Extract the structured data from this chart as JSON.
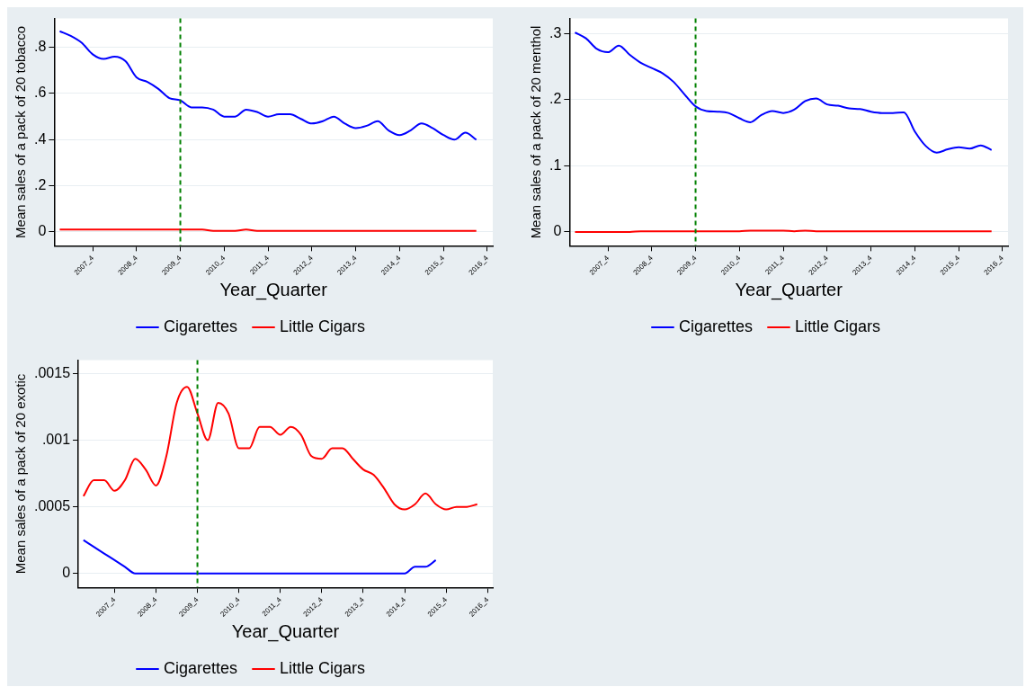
{
  "chart_data": [
    {
      "type": "line",
      "ylabel": "Mean sales of a pack of 20 tobacco",
      "xlabel": "Year_Quarter",
      "categories": [
        null,
        null,
        null,
        "2007_4",
        null,
        null,
        null,
        "2008_4",
        null,
        null,
        null,
        "2009_4",
        null,
        null,
        null,
        "2010_4",
        null,
        null,
        null,
        "2011_4",
        null,
        null,
        null,
        "2012_4",
        null,
        null,
        null,
        "2013_4",
        null,
        null,
        null,
        "2014_4",
        null,
        null,
        null,
        "2015_4",
        null,
        null,
        null,
        "2016_4"
      ],
      "ylim": [
        -0.06,
        0.925
      ],
      "yticks": [
        {
          "value": 0,
          "label": "0"
        },
        {
          "value": 0.2,
          "label": ".2"
        },
        {
          "value": 0.4,
          "label": ".4"
        },
        {
          "value": 0.6,
          "label": ".6"
        },
        {
          "value": 0.8,
          "label": ".8"
        }
      ],
      "grid": "y",
      "legend": "bottom",
      "marker": "none",
      "ref_lines": [
        {
          "axis": "x",
          "value": "2009_4",
          "color": "#008000",
          "line_style": "dashed"
        }
      ],
      "series": [
        {
          "name": "Cigarettes",
          "color": "#0000ff",
          "values": [
            0.87,
            0.85,
            0.82,
            0.77,
            0.75,
            0.76,
            0.74,
            0.67,
            0.65,
            0.62,
            0.58,
            0.57,
            0.54,
            0.54,
            0.53,
            0.5,
            0.5,
            0.53,
            0.52,
            0.5,
            0.51,
            0.51,
            0.49,
            0.47,
            0.48,
            0.5,
            0.47,
            0.45,
            0.46,
            0.48,
            0.44,
            0.42,
            0.44,
            0.47,
            0.45,
            0.42,
            0.4,
            0.43,
            0.4,
            null
          ]
        },
        {
          "name": "Little Cigars",
          "color": "#ff0000",
          "values": [
            0.01,
            0.01,
            0.01,
            0.01,
            0.01,
            0.01,
            0.01,
            0.01,
            0.01,
            0.01,
            0.01,
            0.01,
            0.01,
            0.01,
            0.005,
            0.005,
            0.005,
            0.01,
            0.005,
            0.005,
            0.005,
            0.005,
            0.005,
            0.005,
            0.005,
            0.005,
            0.005,
            0.005,
            0.005,
            0.005,
            0.005,
            0.005,
            0.005,
            0.005,
            0.005,
            0.005,
            0.005,
            0.005,
            0.005,
            null
          ]
        }
      ]
    },
    {
      "type": "line",
      "ylabel": "Mean sales of a pack of 20 menthol",
      "xlabel": "Year_Quarter",
      "categories": [
        null,
        null,
        null,
        "2007_4",
        null,
        null,
        null,
        "2008_4",
        null,
        null,
        null,
        "2009_4",
        null,
        null,
        null,
        "2010_4",
        null,
        null,
        null,
        "2011_4",
        null,
        null,
        null,
        "2012_4",
        null,
        null,
        null,
        "2013_4",
        null,
        null,
        null,
        "2014_4",
        null,
        null,
        null,
        "2015_4",
        null,
        null,
        null,
        "2016_4"
      ],
      "ylim": [
        -0.021,
        0.323
      ],
      "yticks": [
        {
          "value": 0,
          "label": "0"
        },
        {
          "value": 0.1,
          "label": ".1"
        },
        {
          "value": 0.2,
          "label": ".2"
        },
        {
          "value": 0.3,
          "label": ".3"
        }
      ],
      "grid": "y",
      "legend": "bottom",
      "marker": "none",
      "ref_lines": [
        {
          "axis": "x",
          "value": "2009_4",
          "color": "#008000",
          "line_style": "dashed"
        }
      ],
      "series": [
        {
          "name": "Cigarettes",
          "color": "#0000ff",
          "values": [
            0.302,
            0.293,
            0.277,
            0.272,
            0.282,
            0.268,
            0.256,
            0.248,
            0.24,
            0.227,
            0.208,
            0.19,
            0.183,
            0.182,
            0.18,
            0.172,
            0.166,
            0.177,
            0.183,
            0.18,
            0.185,
            0.198,
            0.202,
            0.193,
            0.191,
            0.187,
            0.186,
            0.182,
            0.18,
            0.18,
            0.181,
            0.152,
            0.13,
            0.12,
            0.125,
            0.128,
            0.126,
            0.131,
            0.124,
            null
          ]
        },
        {
          "name": "Little Cigars",
          "color": "#ff0000",
          "values": [
            0,
            0,
            0,
            0,
            0,
            0,
            0.001,
            0.001,
            0.001,
            0.001,
            0.001,
            0.001,
            0.001,
            0.001,
            0.001,
            0.001,
            0.002,
            0.002,
            0.002,
            0.002,
            0.001,
            0.002,
            0.001,
            0.001,
            0.001,
            0.001,
            0.001,
            0.001,
            0.001,
            0.001,
            0.001,
            0.001,
            0.001,
            0.001,
            0.001,
            0.001,
            0.001,
            0.001,
            0.001,
            null
          ]
        }
      ]
    },
    {
      "type": "line",
      "ylabel": "Mean sales of a pack of 20 exotic",
      "xlabel": "Year_Quarter",
      "categories": [
        null,
        null,
        null,
        "2007_4",
        null,
        null,
        null,
        "2008_4",
        null,
        null,
        null,
        "2009_4",
        null,
        null,
        null,
        "2010_4",
        null,
        null,
        null,
        "2011_4",
        null,
        null,
        null,
        "2012_4",
        null,
        null,
        null,
        "2013_4",
        null,
        null,
        null,
        "2014_4",
        null,
        null,
        null,
        "2015_4",
        null,
        null,
        null,
        "2016_4"
      ],
      "ylim": [
        -0.000105,
        0.0016
      ],
      "yticks": [
        {
          "value": 0,
          "label": "0"
        },
        {
          "value": 0.0005,
          "label": ".0005"
        },
        {
          "value": 0.001,
          "label": ".001"
        },
        {
          "value": 0.0015,
          "label": ".0015"
        }
      ],
      "grid": "y",
      "legend": "bottom",
      "marker": "none",
      "ref_lines": [
        {
          "axis": "x",
          "value": "2009_4",
          "color": "#008000",
          "line_style": "dashed"
        }
      ],
      "series": [
        {
          "name": "Cigarettes",
          "color": "#0000ff",
          "values": [
            0.00025,
            0.0002,
            0.00015,
            0.0001,
            5e-05,
            0,
            0,
            0,
            0,
            0,
            0,
            0,
            0,
            0,
            0,
            0,
            0,
            0,
            0,
            0,
            0,
            0,
            0,
            0,
            0,
            0,
            0,
            0,
            0,
            0,
            0,
            0,
            5e-05,
            5e-05,
            0.0001,
            null,
            null,
            null,
            null,
            null
          ]
        },
        {
          "name": "Little Cigars",
          "color": "#ff0000",
          "values": [
            0.00058,
            0.0007,
            0.0007,
            0.00062,
            0.0007,
            0.00086,
            0.00078,
            0.00066,
            0.00088,
            0.00128,
            0.0014,
            0.0012,
            0.001,
            0.00128,
            0.0012,
            0.00094,
            0.00094,
            0.0011,
            0.0011,
            0.00104,
            0.0011,
            0.00104,
            0.00088,
            0.00086,
            0.00094,
            0.00094,
            0.00086,
            0.00078,
            0.00074,
            0.00064,
            0.00052,
            0.00048,
            0.00052,
            0.0006,
            0.00052,
            0.00048,
            0.0005,
            0.0005,
            0.00052,
            null
          ]
        }
      ]
    }
  ]
}
